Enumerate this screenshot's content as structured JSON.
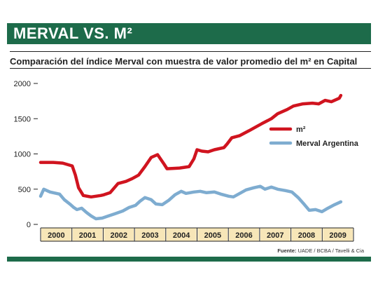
{
  "header": {
    "title": "MERVAL VS. M²"
  },
  "subtitle": "Comparación del índice Merval con muestra de valor promedio del m² en Capital",
  "source": {
    "label": "Fuente:",
    "text": "UADE / BCBA / Tavelli & Cia"
  },
  "colors": {
    "header_bg": "#1d6b4a",
    "m2": "#d0141f",
    "merval": "#7eacd0",
    "year_band": "#f7e6b8"
  },
  "chart_data": {
    "type": "line",
    "ylim": [
      0,
      2000
    ],
    "yticks": [
      0,
      500,
      1000,
      1500,
      2000
    ],
    "ytick_labels": [
      "0",
      "500",
      "1000",
      "1500",
      "2000"
    ],
    "x_start": 2000,
    "x_end": 2009.9,
    "year_labels": [
      "2000",
      "2001",
      "2002",
      "2003",
      "2004",
      "2005",
      "2006",
      "2007",
      "2008",
      "2009"
    ],
    "legend_position": "right",
    "series": [
      {
        "name": "m²",
        "color": "#d0141f",
        "points": [
          [
            2000.0,
            880
          ],
          [
            2000.4,
            880
          ],
          [
            2000.7,
            870
          ],
          [
            2000.85,
            850
          ],
          [
            2001.0,
            830
          ],
          [
            2001.1,
            700
          ],
          [
            2001.2,
            520
          ],
          [
            2001.35,
            410
          ],
          [
            2001.6,
            390
          ],
          [
            2001.9,
            410
          ],
          [
            2002.0,
            420
          ],
          [
            2002.2,
            450
          ],
          [
            2002.45,
            580
          ],
          [
            2002.7,
            610
          ],
          [
            2002.9,
            650
          ],
          [
            2003.1,
            700
          ],
          [
            2003.3,
            820
          ],
          [
            2003.5,
            950
          ],
          [
            2003.7,
            990
          ],
          [
            2003.9,
            860
          ],
          [
            2004.0,
            790
          ],
          [
            2004.4,
            800
          ],
          [
            2004.7,
            820
          ],
          [
            2004.85,
            930
          ],
          [
            2004.95,
            1060
          ],
          [
            2005.1,
            1040
          ],
          [
            2005.3,
            1030
          ],
          [
            2005.5,
            1060
          ],
          [
            2005.8,
            1090
          ],
          [
            2005.9,
            1140
          ],
          [
            2006.05,
            1230
          ],
          [
            2006.3,
            1260
          ],
          [
            2006.6,
            1330
          ],
          [
            2006.8,
            1380
          ],
          [
            2007.0,
            1430
          ],
          [
            2007.3,
            1500
          ],
          [
            2007.5,
            1570
          ],
          [
            2007.8,
            1630
          ],
          [
            2008.0,
            1680
          ],
          [
            2008.3,
            1710
          ],
          [
            2008.6,
            1720
          ],
          [
            2008.8,
            1710
          ],
          [
            2009.0,
            1760
          ],
          [
            2009.2,
            1740
          ],
          [
            2009.45,
            1790
          ],
          [
            2009.5,
            1830
          ]
        ]
      },
      {
        "name": "Merval Argentina",
        "color": "#7eacd0",
        "points": [
          [
            2000.0,
            400
          ],
          [
            2000.1,
            500
          ],
          [
            2000.3,
            460
          ],
          [
            2000.6,
            430
          ],
          [
            2000.75,
            350
          ],
          [
            2000.95,
            280
          ],
          [
            2001.05,
            240
          ],
          [
            2001.15,
            210
          ],
          [
            2001.3,
            230
          ],
          [
            2001.45,
            170
          ],
          [
            2001.6,
            120
          ],
          [
            2001.75,
            80
          ],
          [
            2001.95,
            90
          ],
          [
            2002.15,
            120
          ],
          [
            2002.35,
            150
          ],
          [
            2002.6,
            190
          ],
          [
            2002.8,
            240
          ],
          [
            2003.0,
            270
          ],
          [
            2003.15,
            330
          ],
          [
            2003.3,
            380
          ],
          [
            2003.5,
            350
          ],
          [
            2003.65,
            290
          ],
          [
            2003.85,
            280
          ],
          [
            2004.05,
            340
          ],
          [
            2004.25,
            420
          ],
          [
            2004.45,
            470
          ],
          [
            2004.6,
            440
          ],
          [
            2004.85,
            460
          ],
          [
            2005.05,
            470
          ],
          [
            2005.25,
            450
          ],
          [
            2005.5,
            460
          ],
          [
            2005.7,
            430
          ],
          [
            2005.95,
            400
          ],
          [
            2006.1,
            390
          ],
          [
            2006.3,
            440
          ],
          [
            2006.5,
            490
          ],
          [
            2006.75,
            520
          ],
          [
            2006.95,
            540
          ],
          [
            2007.1,
            500
          ],
          [
            2007.3,
            530
          ],
          [
            2007.5,
            500
          ],
          [
            2007.75,
            480
          ],
          [
            2007.95,
            460
          ],
          [
            2008.15,
            380
          ],
          [
            2008.35,
            280
          ],
          [
            2008.5,
            200
          ],
          [
            2008.7,
            210
          ],
          [
            2008.9,
            180
          ],
          [
            2009.05,
            220
          ],
          [
            2009.3,
            280
          ],
          [
            2009.5,
            320
          ]
        ]
      }
    ]
  }
}
